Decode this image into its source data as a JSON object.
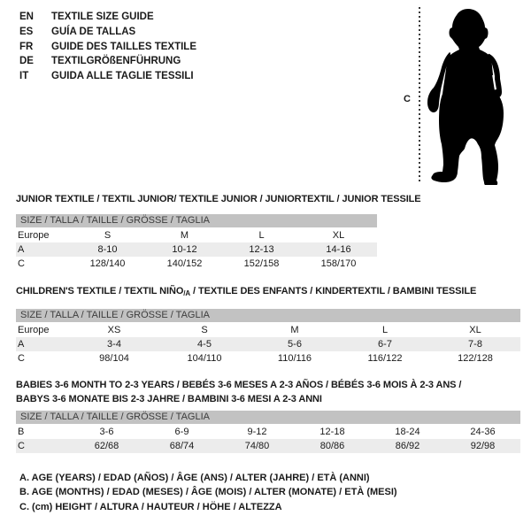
{
  "colors": {
    "background": "#ffffff",
    "size_bar_bg": "#c2c2c2",
    "row_alt_bg": "#ececec",
    "text": "#1a1a1a",
    "silhouette": "#000000"
  },
  "languages": {
    "items": [
      {
        "code": "EN",
        "title": "TEXTILE SIZE GUIDE"
      },
      {
        "code": "ES",
        "title": "GUÍA DE TALLAS"
      },
      {
        "code": "FR",
        "title": "GUIDE DES TAILLES TEXTILE"
      },
      {
        "code": "DE",
        "title": "TEXTILGRÖßENFÜHRUNG"
      },
      {
        "code": "IT",
        "title": "GUIDA ALLE TAGLIE TESSILI"
      }
    ]
  },
  "figure": {
    "height_label": "C"
  },
  "size_header": "SIZE / TALLA / TAILLE / GRÖSSE / TAGLIA",
  "sections": [
    {
      "id": "junior",
      "title_lines": [
        [
          {
            "text": "JUNIOR TEXTILE / TEXTIL JUNIOR/ TEXTILE JUNIOR / JUNIORTEXTIL / JUNIOR TESSILE"
          }
        ]
      ],
      "rows": [
        {
          "label": "Europe",
          "cells": [
            "S",
            "M",
            "L",
            "XL"
          ]
        },
        {
          "label": "A",
          "cells": [
            "8-10",
            "10-12",
            "12-13",
            "14-16"
          ]
        },
        {
          "label": "C",
          "cells": [
            "128/140",
            "140/152",
            "152/158",
            "158/170"
          ]
        }
      ]
    },
    {
      "id": "children",
      "title_lines": [
        [
          {
            "text": "CHILDREN'S TEXTILE / TEXTIL NIÑO"
          },
          {
            "text": "/A",
            "style": "sub"
          },
          {
            "text": " / TEXTILE DES ENFANTS / KINDERTEXTIL / BAMBINI TESSILE"
          }
        ]
      ],
      "rows": [
        {
          "label": "Europe",
          "cells": [
            "XS",
            "S",
            "M",
            "L",
            "XL"
          ]
        },
        {
          "label": "A",
          "cells": [
            "3-4",
            "4-5",
            "5-6",
            "6-7",
            "7-8"
          ]
        },
        {
          "label": "C",
          "cells": [
            "98/104",
            "104/110",
            "110/116",
            "116/122",
            "122/128"
          ]
        }
      ]
    },
    {
      "id": "babies",
      "title_lines": [
        [
          {
            "text": "BABIES 3-6 MONTH TO 2-3 YEARS / BEBÉS 3-6 MESES A 2-3 AÑOS / BÉBÉS 3-6 MOIS À 2-3 ANS /"
          }
        ],
        [
          {
            "text": "BABYS 3-6 MONATE BIS 2-3 JAHRE / BAMBINI 3-6 MESI A 2-3 ANNI"
          }
        ]
      ],
      "rows": [
        {
          "label": "B",
          "cells": [
            "3-6",
            "6-9",
            "9-12",
            "12-18",
            "18-24",
            "24-36"
          ]
        },
        {
          "label": "C",
          "cells": [
            "62/68",
            "68/74",
            "74/80",
            "80/86",
            "86/92",
            "92/98"
          ]
        }
      ]
    }
  ],
  "footnotes": [
    "A. AGE (YEARS) / EDAD (AÑOS) / ÂGE (ANS) / ALTER (JAHRE) / ETÀ (ANNI)",
    "B. AGE (MONTHS) / EDAD (MESES) / ÂGE (MOIS) / ALTER (MONATE) / ETÀ (MESI)",
    "C. (cm) HEIGHT / ALTURA / HAUTEUR / HÖHE / ALTEZZA"
  ]
}
